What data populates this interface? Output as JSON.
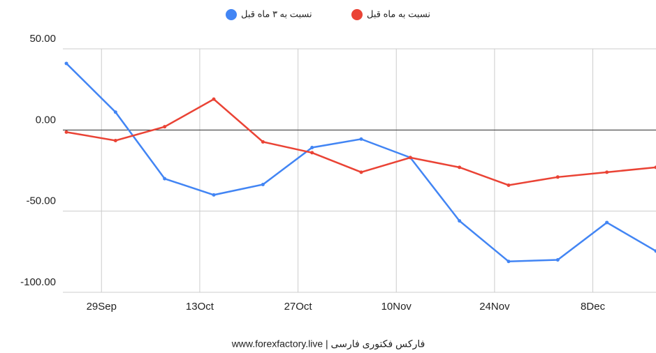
{
  "chart_data": {
    "type": "line",
    "caption": "فارکس فکتوری فارسی | www.forexfactory.live",
    "x": [
      267,
      274,
      281,
      288,
      295,
      302,
      309,
      316,
      323,
      330,
      337,
      344,
      351
    ],
    "xlim": [
      266.5,
      351
    ],
    "xticks": [
      {
        "value": 272,
        "label": "29Sep"
      },
      {
        "value": 286,
        "label": "13Oct"
      },
      {
        "value": 300,
        "label": "27Oct"
      },
      {
        "value": 314,
        "label": "10Nov"
      },
      {
        "value": 328,
        "label": "24Nov"
      },
      {
        "value": 342,
        "label": "8Dec"
      }
    ],
    "ylim": [
      -100,
      50
    ],
    "yticks": [
      {
        "value": 50,
        "label": "50.00"
      },
      {
        "value": 0,
        "label": "0.00"
      },
      {
        "value": -50,
        "label": "-50.00"
      },
      {
        "value": -100,
        "label": "-100.00"
      }
    ],
    "grid": true,
    "legend": "top",
    "series": [
      {
        "name": "نسبت به ۳ ماه قبل",
        "color": "#4285f4",
        "values": [
          41,
          11,
          -30,
          -40,
          -33.6,
          -10.8,
          -5.6,
          -17,
          -56,
          -81,
          -80,
          -57,
          -74.6
        ]
      },
      {
        "name": "نسبت به ماه قبل",
        "color": "#ea4335",
        "values": [
          -1.3,
          -6.5,
          2,
          19,
          -7.3,
          -14,
          -26,
          -17,
          -23,
          -34,
          -29,
          -26,
          -23
        ]
      }
    ]
  }
}
